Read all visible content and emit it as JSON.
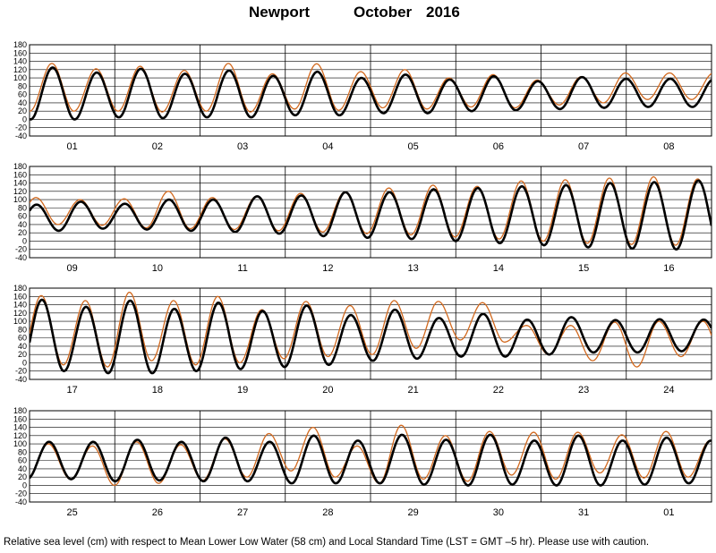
{
  "title": {
    "station": "Newport",
    "month": "October",
    "year": "2016"
  },
  "caption": "Relative sea level (cm) with respect to Mean Lower Low Water (58 cm) and Local Standard Time (LST = GMT –5 hr). Please use with caution.",
  "colors": {
    "predicted": "#000000",
    "observed": "#d2691e",
    "grid": "#000000"
  },
  "chart_data": {
    "type": "line",
    "ylim": [
      -40,
      180
    ],
    "y_ticks": [
      180,
      160,
      140,
      120,
      100,
      80,
      60,
      40,
      20,
      0,
      -20,
      -40
    ],
    "grid": true,
    "period_hours": 12.42,
    "panels": [
      {
        "days": [
          "01",
          "02",
          "03",
          "04",
          "05",
          "06",
          "07",
          "08"
        ],
        "predicted": {
          "highs": [
            125,
            113,
            122,
            110,
            118,
            105,
            115,
            100,
            108,
            96,
            104,
            92,
            102,
            98
          ],
          "lows": [
            0,
            5,
            3,
            5,
            5,
            10,
            10,
            15,
            15,
            20,
            22,
            25,
            28,
            30
          ],
          "first_high_hour": 6.5
        },
        "observed": {
          "highs": [
            135,
            122,
            128,
            118,
            135,
            110,
            134,
            115,
            120,
            100,
            108,
            95,
            103,
            112
          ],
          "lows": [
            20,
            20,
            18,
            20,
            18,
            25,
            22,
            28,
            25,
            30,
            28,
            35,
            40,
            48
          ],
          "first_high_hour": 6.3
        }
      },
      {
        "days": [
          "09",
          "10",
          "11",
          "12",
          "13",
          "14",
          "15",
          "16"
        ],
        "predicted": {
          "highs": [
            88,
            95,
            90,
            100,
            100,
            108,
            110,
            118,
            118,
            125,
            128,
            132,
            135,
            140,
            142,
            146
          ],
          "lows": [
            25,
            30,
            28,
            25,
            22,
            18,
            12,
            8,
            5,
            0,
            -5,
            -10,
            -15,
            -18,
            -20,
            -22
          ],
          "first_high_hour": 2.0
        },
        "observed": {
          "highs": [
            105,
            100,
            102,
            120,
            105,
            108,
            115,
            118,
            128,
            135,
            132,
            145,
            148,
            152,
            155,
            150
          ],
          "lows": [
            40,
            38,
            32,
            30,
            28,
            25,
            22,
            18,
            15,
            10,
            5,
            0,
            -5,
            -8,
            -10,
            -12
          ],
          "first_high_hour": 1.8
        }
      },
      {
        "days": [
          "17",
          "18",
          "19",
          "20",
          "21",
          "22",
          "23",
          "24"
        ],
        "predicted": {
          "highs": [
            152,
            135,
            150,
            130,
            145,
            125,
            138,
            115,
            128,
            108,
            118,
            104,
            110,
            103,
            105,
            104
          ],
          "lows": [
            -20,
            -25,
            -25,
            -20,
            -15,
            -10,
            -5,
            5,
            10,
            15,
            15,
            20,
            25,
            25,
            28,
            30
          ],
          "first_high_hour": 3.5
        },
        "observed": {
          "highs": [
            162,
            150,
            170,
            150,
            160,
            128,
            148,
            138,
            150,
            148,
            145,
            90,
            90,
            98,
            100,
            100
          ],
          "lows": [
            -5,
            -10,
            5,
            -5,
            0,
            10,
            15,
            20,
            35,
            55,
            50,
            20,
            5,
            -10,
            15,
            -5
          ],
          "first_high_hour": 3.3
        }
      },
      {
        "days": [
          "25",
          "26",
          "27",
          "28",
          "29",
          "30",
          "31",
          "01"
        ],
        "predicted": {
          "highs": [
            105,
            105,
            110,
            105,
            115,
            105,
            120,
            108,
            122,
            110,
            122,
            108,
            120,
            108,
            115,
            108
          ],
          "lows": [
            15,
            10,
            12,
            10,
            10,
            5,
            5,
            5,
            2,
            0,
            2,
            0,
            0,
            2,
            5,
            5
          ],
          "first_high_hour": 5.5
        },
        "observed": {
          "highs": [
            100,
            95,
            105,
            98,
            112,
            125,
            140,
            95,
            145,
            120,
            130,
            128,
            128,
            122,
            130,
            108
          ],
          "lows": [
            15,
            0,
            5,
            12,
            20,
            35,
            20,
            5,
            15,
            10,
            25,
            15,
            30,
            18,
            20,
            15
          ],
          "first_high_hour": 5.3
        }
      }
    ]
  }
}
